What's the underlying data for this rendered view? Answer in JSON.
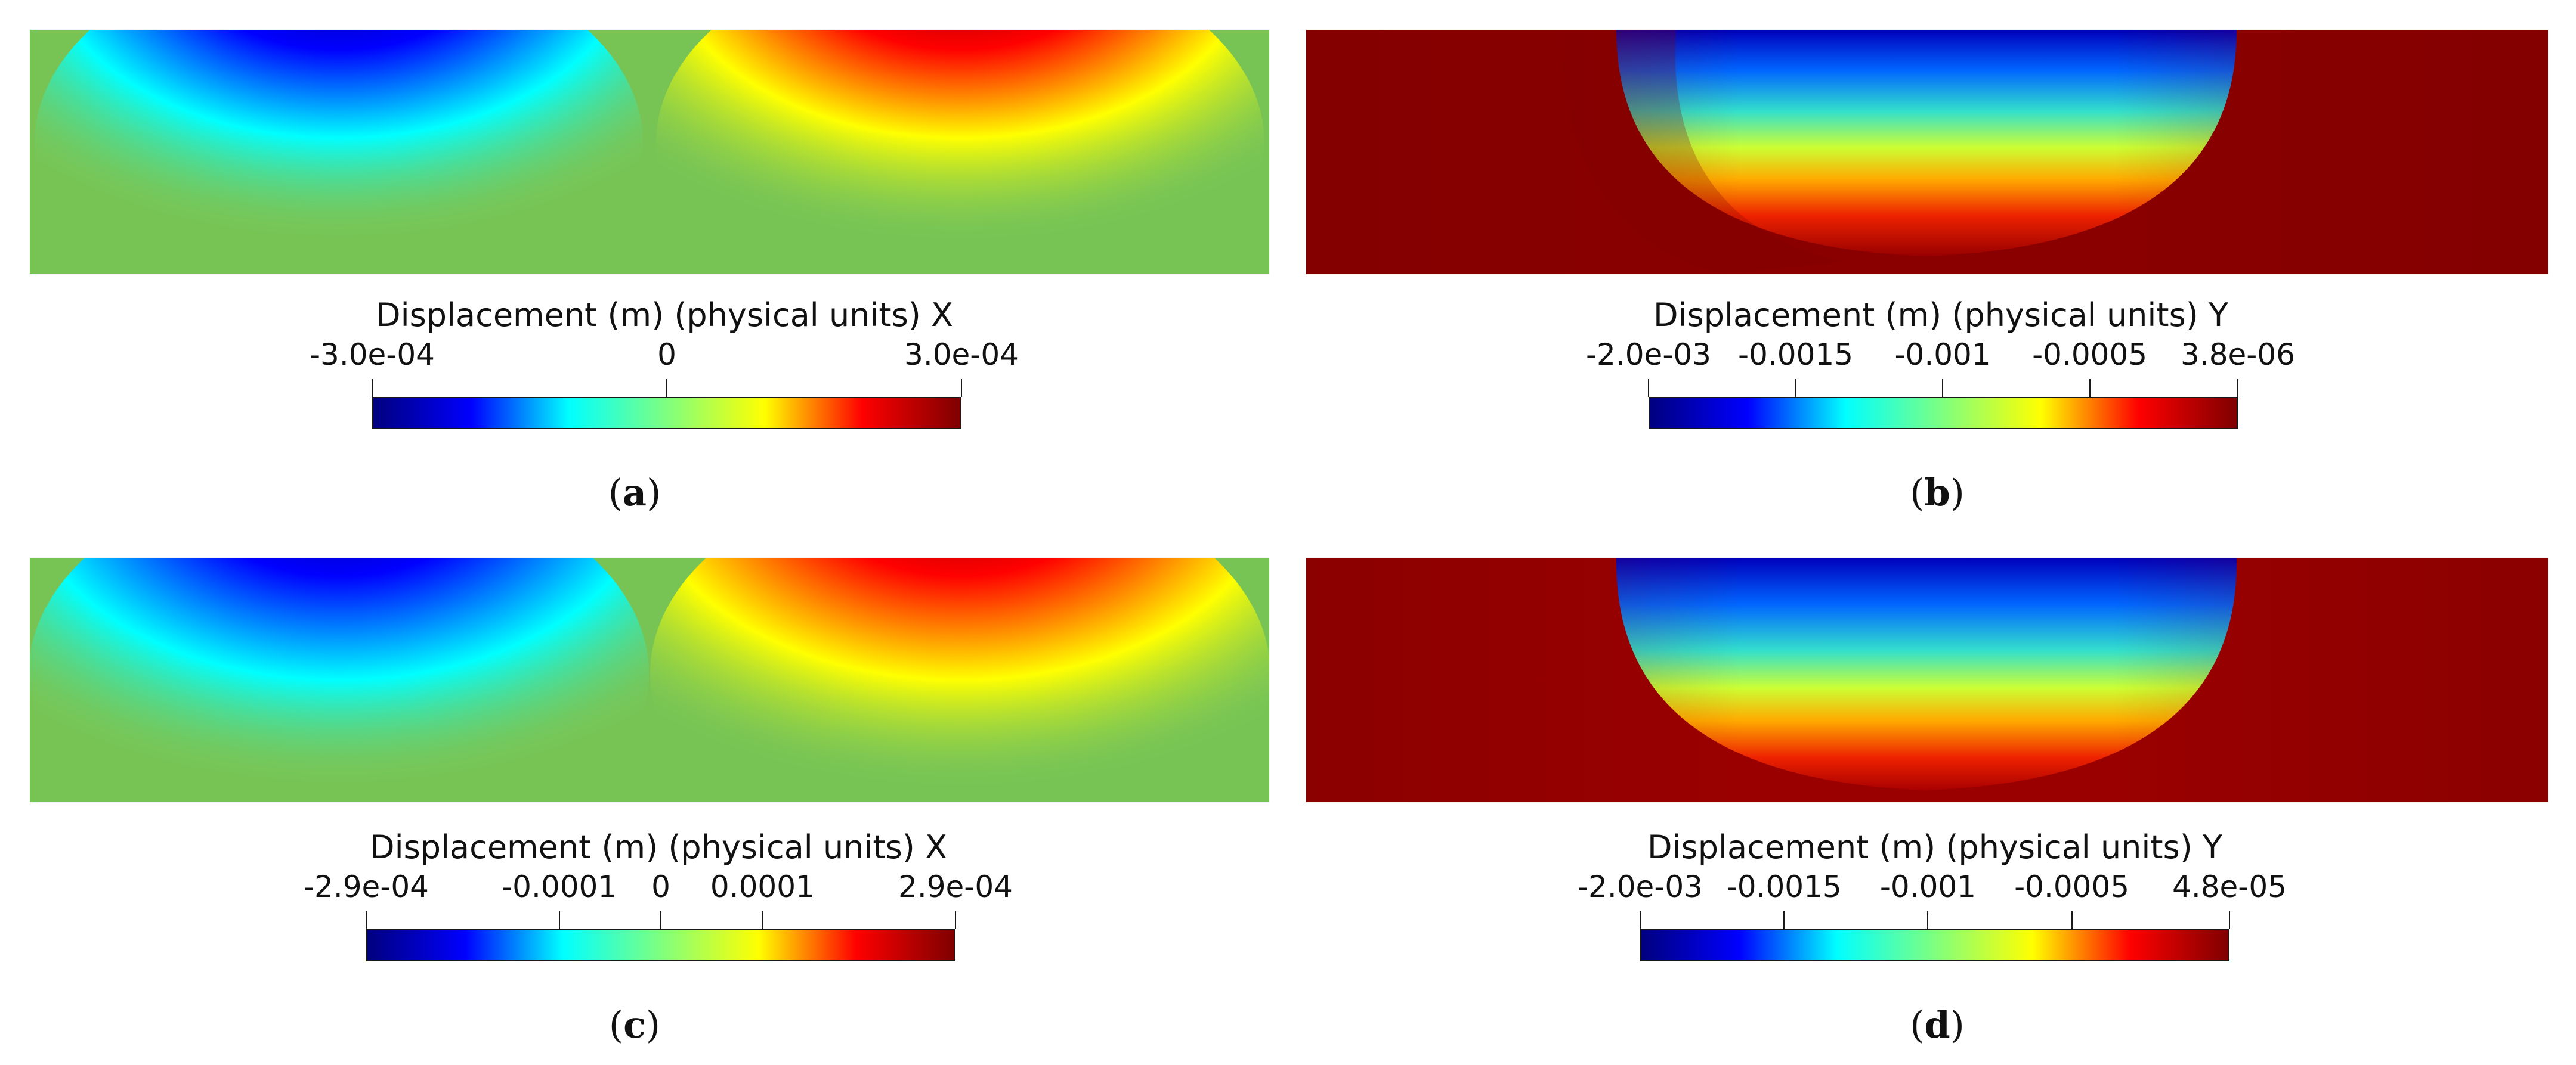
{
  "colormap": [
    "#00007f",
    "#0000ff",
    "#00ffff",
    "#7fff7f",
    "#ffff00",
    "#ff0000",
    "#7f0000"
  ],
  "panels": [
    {
      "id": "a",
      "caption": "a",
      "colorbar_title": "Displacement (m) (physical units) X",
      "ticks": [
        {
          "label": "-3.0e-04",
          "value": -0.0003
        },
        {
          "label": "0",
          "value": 0
        },
        {
          "label": "3.0e-04",
          "value": 0.0003
        }
      ],
      "range": [
        -0.0003,
        0.0003
      ],
      "field": "x"
    },
    {
      "id": "b",
      "caption": "b",
      "colorbar_title": "Displacement (m) (physical units) Y",
      "ticks": [
        {
          "label": "-2.0e-03",
          "value": -0.002
        },
        {
          "label": "-0.0015",
          "value": -0.0015
        },
        {
          "label": "-0.001",
          "value": -0.001
        },
        {
          "label": "-0.0005",
          "value": -0.0005
        },
        {
          "label": "3.8e-06",
          "value": 3.8e-06
        }
      ],
      "range": [
        -0.002,
        3.8e-06
      ],
      "field": "y"
    },
    {
      "id": "c",
      "caption": "c",
      "colorbar_title": "Displacement (m) (physical units) X",
      "ticks": [
        {
          "label": "-2.9e-04",
          "value": -0.00029
        },
        {
          "label": "-0.0001",
          "value": -0.0001
        },
        {
          "label": "0",
          "value": 0
        },
        {
          "label": "0.0001",
          "value": 0.0001
        },
        {
          "label": "2.9e-04",
          "value": 0.00029
        }
      ],
      "range": [
        -0.00029,
        0.00029
      ],
      "field": "x"
    },
    {
      "id": "d",
      "caption": "d",
      "colorbar_title": "Displacement (m) (physical units) Y",
      "ticks": [
        {
          "label": "-2.0e-03",
          "value": -0.002
        },
        {
          "label": "-0.0015",
          "value": -0.0015
        },
        {
          "label": "-0.001",
          "value": -0.001
        },
        {
          "label": "-0.0005",
          "value": -0.0005
        },
        {
          "label": "4.8e-05",
          "value": 4.8e-05
        }
      ],
      "range": [
        -0.002,
        4.8e-05
      ],
      "field": "y"
    }
  ]
}
